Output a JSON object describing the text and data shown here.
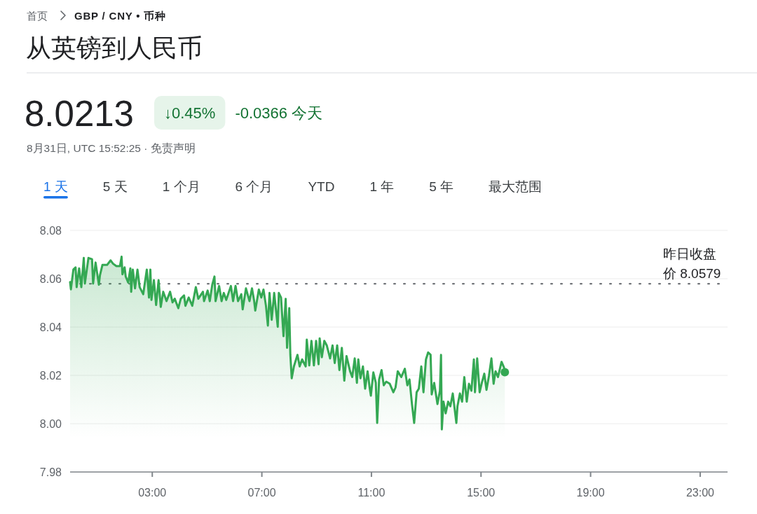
{
  "chart_data": {
    "type": "area",
    "title": "从英镑到人民币",
    "annotations": [
      "首页",
      "GBP / CNY • 币种",
      "8.0213",
      "↓0.45%",
      "-0.0366 今天",
      "8月31日, UTC 15:52:25 · 免责声明",
      "1 天",
      "5 天",
      "1 个月",
      "6 个月",
      "YTD",
      "1 年",
      "5 年",
      "最大范围"
    ],
    "xlim": [
      0,
      24
    ],
    "xticks": [
      {
        "value": 3,
        "label": "03:00"
      },
      {
        "value": 7,
        "label": "07:00"
      },
      {
        "value": 11,
        "label": "11:00"
      },
      {
        "value": 15,
        "label": "15:00"
      },
      {
        "value": 19,
        "label": "19:00"
      },
      {
        "value": 23,
        "label": "23:00"
      }
    ],
    "ylim": [
      7.98,
      8.08
    ],
    "yticks": [
      7.98,
      {
        "value": 8,
        "label": "8.00"
      },
      8.02,
      8.04,
      8.06,
      8.08
    ],
    "grid": "y",
    "ref_lines": [
      {
        "axis": "y",
        "value": 8.0579,
        "label": "昨日收盘价 8.0579",
        "line_style": "dotted",
        "color": "#5f6368"
      }
    ],
    "series": [
      {
        "color": "#34a853",
        "x": [
          0.0,
          0.03,
          0.12,
          0.2,
          0.24,
          0.33,
          0.41,
          0.5,
          0.54,
          0.67,
          0.8,
          0.84,
          0.93,
          1.05,
          1.09,
          1.18,
          1.35,
          1.48,
          1.57,
          1.69,
          1.82,
          1.88,
          1.91,
          1.99,
          2.03,
          2.12,
          2.2,
          2.23,
          2.29,
          2.37,
          2.46,
          2.54,
          2.67,
          2.8,
          2.88,
          2.93,
          2.97,
          3.06,
          3.14,
          3.23,
          3.31,
          3.4,
          3.52,
          3.65,
          3.74,
          3.82,
          3.95,
          4.04,
          4.16,
          4.21,
          4.33,
          4.46,
          4.59,
          4.68,
          4.85,
          4.89,
          5.02,
          5.1,
          5.19,
          5.27,
          5.31,
          5.44,
          5.53,
          5.61,
          5.7,
          5.87,
          5.95,
          6.04,
          6.13,
          6.25,
          6.3,
          6.42,
          6.55,
          6.64,
          6.72,
          6.76,
          6.89,
          6.98,
          7.06,
          7.15,
          7.22,
          7.28,
          7.36,
          7.45,
          7.58,
          7.62,
          7.7,
          7.79,
          7.87,
          7.92,
          8.0,
          8.04,
          8.09,
          8.17,
          8.3,
          8.38,
          8.47,
          8.6,
          8.64,
          8.73,
          8.81,
          8.9,
          8.98,
          9.07,
          9.11,
          9.19,
          9.28,
          9.37,
          9.49,
          9.58,
          9.66,
          9.75,
          9.83,
          9.92,
          10.01,
          10.09,
          10.22,
          10.3,
          10.39,
          10.47,
          10.52,
          10.6,
          10.69,
          10.77,
          10.86,
          10.94,
          10.98,
          11.07,
          11.16,
          11.21,
          11.28,
          11.37,
          11.45,
          11.54,
          11.67,
          11.8,
          11.88,
          11.96,
          12.09,
          12.22,
          12.31,
          12.39,
          12.48,
          12.56,
          12.65,
          12.73,
          12.82,
          12.9,
          12.99,
          13.07,
          13.16,
          13.2,
          13.29,
          13.41,
          13.5,
          13.54,
          13.57,
          13.63,
          13.71,
          13.8,
          13.88,
          13.97,
          14.1,
          14.14,
          14.23,
          14.31,
          14.39,
          14.48,
          14.56,
          14.65,
          14.74,
          14.78,
          14.86,
          14.95,
          15.03,
          15.12,
          15.2,
          15.29,
          15.38,
          15.46,
          15.53,
          15.62,
          15.75,
          15.84,
          15.87
        ],
        "values": [
          8.0586,
          8.0556,
          8.0638,
          8.0647,
          8.0565,
          8.0643,
          8.0565,
          8.0686,
          8.058,
          8.0686,
          8.0681,
          8.058,
          8.0667,
          8.0575,
          8.0614,
          8.0657,
          8.0657,
          8.0676,
          8.0662,
          8.0652,
          8.0652,
          8.0691,
          8.0618,
          8.0647,
          8.0609,
          8.0584,
          8.0643,
          8.0546,
          8.0638,
          8.056,
          8.0638,
          8.0565,
          8.0536,
          8.0638,
          8.0522,
          8.0638,
          8.0512,
          8.0594,
          8.0491,
          8.0594,
          8.0483,
          8.0546,
          8.0507,
          8.0546,
          8.0502,
          8.0517,
          8.0478,
          8.0517,
          8.0531,
          8.0488,
          8.0522,
          8.0488,
          8.0565,
          8.0517,
          8.0546,
          8.0507,
          8.0551,
          8.0507,
          8.0575,
          8.0609,
          8.0507,
          8.057,
          8.0507,
          8.0541,
          8.0512,
          8.057,
          8.0507,
          8.057,
          8.0507,
          8.0536,
          8.0473,
          8.056,
          8.0507,
          8.056,
          8.0507,
          8.0468,
          8.0555,
          8.0522,
          8.0555,
          8.0488,
          8.0406,
          8.0541,
          8.043,
          8.0541,
          8.0401,
          8.0541,
          8.0522,
          8.0362,
          8.0517,
          8.0314,
          8.0478,
          8.0285,
          8.0188,
          8.0237,
          8.0285,
          8.0237,
          8.0266,
          8.0237,
          8.0348,
          8.0241,
          8.0343,
          8.0241,
          8.0343,
          8.0246,
          8.0353,
          8.0275,
          8.0343,
          8.0324,
          8.027,
          8.0324,
          8.0251,
          8.0324,
          8.0222,
          8.0314,
          8.0178,
          8.028,
          8.0217,
          8.0193,
          8.027,
          8.0169,
          8.0266,
          8.0188,
          8.0237,
          8.0145,
          8.0217,
          8.0145,
          8.0116,
          8.0212,
          8.0169,
          8.0003,
          8.0183,
          8.0222,
          8.0159,
          8.0174,
          8.0165,
          8.013,
          8.015,
          8.0217,
          8.0193,
          8.0227,
          8.0159,
          8.0183,
          8.0081,
          8.0003,
          8.013,
          8.0145,
          8.0237,
          8.013,
          8.0266,
          8.0295,
          8.0285,
          8.0121,
          8.0169,
          8.0081,
          8.0136,
          8.0285,
          7.9976,
          8.0091,
          8.0043,
          8.0091,
          8.0072,
          8.0125,
          8.0003,
          8.0072,
          8.0125,
          8.0091,
          8.0193,
          8.0091,
          8.0165,
          8.0136,
          8.0266,
          8.013,
          8.027,
          8.013,
          8.0169,
          8.0207,
          8.014,
          8.0198,
          8.027,
          8.0165,
          8.0217,
          8.0193,
          8.0256,
          8.0232,
          8.0213
        ]
      },
      {
        "type": "scatter",
        "color": "#34a853",
        "marker": "circle",
        "x": [
          15.87
        ],
        "values": [
          8.0213
        ]
      }
    ]
  }
}
